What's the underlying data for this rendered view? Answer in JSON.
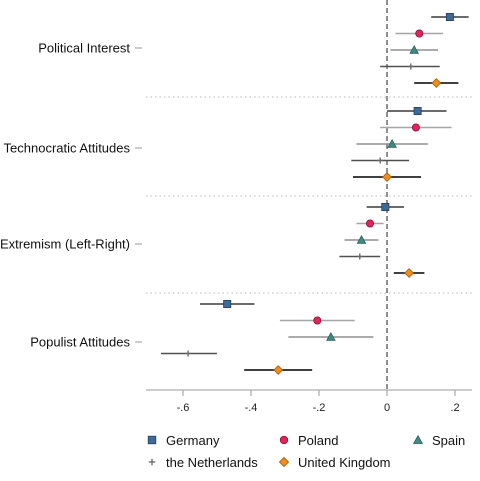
{
  "chart_data": {
    "type": "scatter",
    "subtype": "coefficient-plot-with-confidence-intervals",
    "orientation": "horizontal",
    "title": "",
    "xlabel": "",
    "ylabel": "",
    "xlim": [
      -0.7,
      0.25
    ],
    "xticks": [
      -0.6,
      -0.4,
      -0.2,
      0,
      0.2
    ],
    "xtick_labels": [
      "-.6",
      "-.4",
      "-.2",
      "0",
      ".2"
    ],
    "reference_line": {
      "x": 0,
      "style": "dashed"
    },
    "grid": false,
    "group_separators": "dotted",
    "legend_position": "bottom",
    "legend_columns": 3,
    "groups": [
      "Political Interest",
      "Technocratic Attitudes",
      "Extremism (Left-Right)",
      "Populist Attitudes"
    ],
    "series": [
      {
        "name": "Germany",
        "marker": "square",
        "color": "#3d6a9a",
        "ci_color": "#3a3a3a",
        "points": [
          {
            "group": "Political Interest",
            "estimate": 0.185,
            "ci": [
              0.13,
              0.24
            ]
          },
          {
            "group": "Technocratic Attitudes",
            "estimate": 0.09,
            "ci": [
              0.0,
              0.175
            ]
          },
          {
            "group": "Extremism (Left-Right)",
            "estimate": -0.005,
            "ci": [
              -0.06,
              0.05
            ]
          },
          {
            "group": "Populist Attitudes",
            "estimate": -0.47,
            "ci": [
              -0.55,
              -0.39
            ]
          }
        ]
      },
      {
        "name": "Poland",
        "marker": "circle",
        "color": "#e0245e",
        "ci_color": "#a6a6a6",
        "points": [
          {
            "group": "Political Interest",
            "estimate": 0.095,
            "ci": [
              0.025,
              0.165
            ]
          },
          {
            "group": "Technocratic Attitudes",
            "estimate": 0.085,
            "ci": [
              -0.02,
              0.19
            ]
          },
          {
            "group": "Extremism (Left-Right)",
            "estimate": -0.05,
            "ci": [
              -0.09,
              -0.01
            ]
          },
          {
            "group": "Populist Attitudes",
            "estimate": -0.205,
            "ci": [
              -0.315,
              -0.095
            ]
          }
        ]
      },
      {
        "name": "Spain",
        "marker": "triangle",
        "color": "#3c8b86",
        "ci_color": "#8f8f8f",
        "points": [
          {
            "group": "Political Interest",
            "estimate": 0.08,
            "ci": [
              0.01,
              0.15
            ]
          },
          {
            "group": "Technocratic Attitudes",
            "estimate": 0.015,
            "ci": [
              -0.09,
              0.12
            ]
          },
          {
            "group": "Extremism (Left-Right)",
            "estimate": -0.075,
            "ci": [
              -0.125,
              -0.025
            ]
          },
          {
            "group": "Populist Attitudes",
            "estimate": -0.165,
            "ci": [
              -0.29,
              -0.04
            ]
          }
        ]
      },
      {
        "name": "the Netherlands",
        "marker": "plus",
        "color": "#666666",
        "ci_color": "#505050",
        "points": [
          {
            "group": "Political Interest",
            "estimate": 0.07,
            "ci": [
              -0.02,
              0.155
            ]
          },
          {
            "group": "Technocratic Attitudes",
            "estimate": -0.02,
            "ci": [
              -0.105,
              0.065
            ]
          },
          {
            "group": "Extremism (Left-Right)",
            "estimate": -0.08,
            "ci": [
              -0.14,
              -0.02
            ]
          },
          {
            "group": "Populist Attitudes",
            "estimate": -0.585,
            "ci": [
              -0.665,
              -0.5
            ]
          }
        ]
      },
      {
        "name": "United Kingdom",
        "marker": "diamond",
        "color": "#f28c1c",
        "ci_color": "#000000",
        "points": [
          {
            "group": "Political Interest",
            "estimate": 0.145,
            "ci": [
              0.08,
              0.21
            ]
          },
          {
            "group": "Technocratic Attitudes",
            "estimate": 0.0,
            "ci": [
              -0.1,
              0.1
            ]
          },
          {
            "group": "Extremism (Left-Right)",
            "estimate": 0.065,
            "ci": [
              0.02,
              0.11
            ]
          },
          {
            "group": "Populist Attitudes",
            "estimate": -0.32,
            "ci": [
              -0.42,
              -0.22
            ]
          }
        ]
      }
    ]
  }
}
